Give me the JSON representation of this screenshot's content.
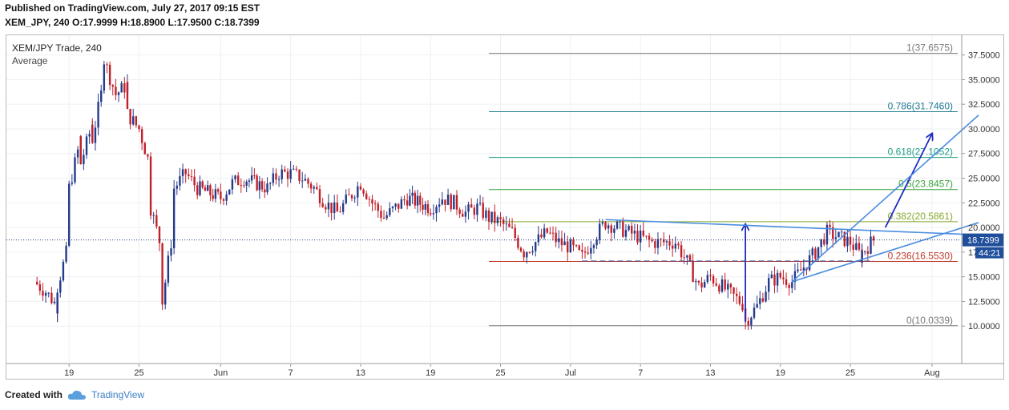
{
  "header": {
    "published": "Published on TradingView.com, July 27, 2017 09:15 EST",
    "quote": "XEM_JPY, 240  O:17.9999 H:18.8900 L:17.9500 C:18.7399"
  },
  "footer": {
    "created_with": "Created with",
    "brand": "TradingView"
  },
  "chart_data": {
    "type": "candlestick",
    "title": "XEM/JPY Trade, 240",
    "subtitle": "Average",
    "x_ticks": [
      "19",
      "25",
      "Jun",
      "7",
      "13",
      "19",
      "25",
      "Jul",
      "7",
      "13",
      "19",
      "25",
      "Aug"
    ],
    "y_ticks": [
      "10.0000",
      "12.5000",
      "15.0000",
      "17.5000",
      "20.0000",
      "22.5000",
      "25.0000",
      "27.5000",
      "30.0000",
      "32.5000",
      "35.0000",
      "37.5000"
    ],
    "ylim": [
      6.2,
      39.5
    ],
    "last_price": "18.7399",
    "countdown": "44:21",
    "fib_levels": [
      {
        "label": "1(37.6575)",
        "value": 37.6575,
        "color": "#787878"
      },
      {
        "label": "0.786(31.7460)",
        "value": 31.746,
        "color": "#1f7a93"
      },
      {
        "label": "0.618(27.1052)",
        "value": 27.1052,
        "color": "#1d9e84"
      },
      {
        "label": "0.5(23.8457)",
        "value": 23.8457,
        "color": "#3aa43a"
      },
      {
        "label": "0.382(20.5861)",
        "value": 20.5861,
        "color": "#86a82c"
      },
      {
        "label": "0.236(16.5530)",
        "value": 16.553,
        "color": "#c0392b"
      },
      {
        "label": "0(10.0339)",
        "value": 10.0339,
        "color": "#787878"
      }
    ],
    "price_path": [
      [
        "2017-05-16",
        14.5
      ],
      [
        "2017-05-17",
        13.5
      ],
      [
        "2017-05-18",
        12.0
      ],
      [
        "2017-05-18",
        14.0
      ],
      [
        "2017-05-19",
        18.5
      ],
      [
        "2017-05-19",
        24.0
      ],
      [
        "2017-05-20",
        29.0
      ],
      [
        "2017-05-20",
        26.5
      ],
      [
        "2017-05-21",
        30.5
      ],
      [
        "2017-05-21",
        29.0
      ],
      [
        "2017-05-22",
        35.0
      ],
      [
        "2017-05-22",
        37.0
      ],
      [
        "2017-05-23",
        33.5
      ],
      [
        "2017-05-24",
        34.5
      ],
      [
        "2017-05-24",
        31.5
      ],
      [
        "2017-05-25",
        30.0
      ],
      [
        "2017-05-26",
        26.0
      ],
      [
        "2017-05-26",
        22.0
      ],
      [
        "2017-05-27",
        17.5
      ],
      [
        "2017-05-27",
        12.5
      ],
      [
        "2017-05-28",
        20.5
      ],
      [
        "2017-05-28",
        24.0
      ],
      [
        "2017-05-29",
        25.5
      ],
      [
        "2017-05-30",
        24.0
      ],
      [
        "2017-06-01",
        23.0
      ],
      [
        "2017-06-02",
        24.5
      ],
      [
        "2017-06-03",
        25.0
      ],
      [
        "2017-06-05",
        24.0
      ],
      [
        "2017-06-06",
        25.5
      ],
      [
        "2017-06-07",
        25.5
      ],
      [
        "2017-06-08",
        25.0
      ],
      [
        "2017-06-09",
        24.0
      ],
      [
        "2017-06-10",
        22.5
      ],
      [
        "2017-06-11",
        21.5
      ],
      [
        "2017-06-12",
        23.0
      ],
      [
        "2017-06-13",
        24.5
      ],
      [
        "2017-06-14",
        22.5
      ],
      [
        "2017-06-15",
        21.0
      ],
      [
        "2017-06-16",
        22.0
      ],
      [
        "2017-06-17",
        23.0
      ],
      [
        "2017-06-19",
        22.0
      ],
      [
        "2017-06-20",
        23.0
      ],
      [
        "2017-06-21",
        22.5
      ],
      [
        "2017-06-22",
        21.5
      ],
      [
        "2017-06-23",
        22.0
      ],
      [
        "2017-06-24",
        21.0
      ],
      [
        "2017-06-25",
        20.5
      ],
      [
        "2017-06-26",
        19.5
      ],
      [
        "2017-06-27",
        17.5
      ],
      [
        "2017-06-28",
        18.5
      ],
      [
        "2017-06-29",
        19.5
      ],
      [
        "2017-06-30",
        18.5
      ],
      [
        "2017-07-01",
        18.0
      ],
      [
        "2017-07-02",
        17.0
      ],
      [
        "2017-07-03",
        19.0
      ],
      [
        "2017-07-04",
        20.5
      ],
      [
        "2017-07-05",
        20.0
      ],
      [
        "2017-07-06",
        19.5
      ],
      [
        "2017-07-07",
        19.0
      ],
      [
        "2017-07-08",
        18.5
      ],
      [
        "2017-07-09",
        18.5
      ],
      [
        "2017-07-10",
        18.5
      ],
      [
        "2017-07-11",
        16.5
      ],
      [
        "2017-07-12",
        14.0
      ],
      [
        "2017-07-13",
        15.0
      ],
      [
        "2017-07-14",
        14.0
      ],
      [
        "2017-07-15",
        13.0
      ],
      [
        "2017-07-16",
        12.0
      ],
      [
        "2017-07-16",
        10.5
      ],
      [
        "2017-07-17",
        12.0
      ],
      [
        "2017-07-18",
        14.5
      ],
      [
        "2017-07-19",
        15.0
      ],
      [
        "2017-07-20",
        14.5
      ],
      [
        "2017-07-21",
        16.0
      ],
      [
        "2017-07-22",
        17.5
      ],
      [
        "2017-07-23",
        19.5
      ],
      [
        "2017-07-24",
        19.0
      ],
      [
        "2017-07-25",
        18.5
      ],
      [
        "2017-07-26",
        17.0
      ],
      [
        "2017-07-26",
        17.5
      ],
      [
        "2017-07-27",
        18.74
      ]
    ],
    "annotations": [
      {
        "kind": "arrow",
        "from": [
          "2017-07-16",
          10.4
        ],
        "to": [
          "2017-07-16",
          20.3
        ],
        "color": "#1f2bbf"
      },
      {
        "kind": "arrow",
        "from": [
          "2017-07-28",
          20.0
        ],
        "to": [
          "2017-08-01",
          29.5
        ],
        "color": "#1f2bbf"
      },
      {
        "kind": "trendline",
        "from": [
          "2017-07-04",
          20.8
        ],
        "to": [
          "2017-08-05",
          19.25
        ],
        "color": "#4a8de0"
      },
      {
        "kind": "trendline",
        "from": [
          "2017-07-20",
          14.5
        ],
        "to": [
          "2017-08-05",
          31.4
        ],
        "color": "#4a8de0"
      },
      {
        "kind": "trendline",
        "from": [
          "2017-07-20",
          14.5
        ],
        "to": [
          "2017-08-05",
          20.5
        ],
        "color": "#4a8de0"
      },
      {
        "kind": "dashed",
        "from": [
          "2017-07-02",
          16.6
        ],
        "to": [
          "2017-07-27",
          16.6
        ],
        "color": "#3a5fae"
      }
    ],
    "colors": {
      "up": "#243a8a",
      "down": "#c0202a",
      "axis_text": "#333333",
      "price_label": "#1f4e9b"
    }
  }
}
